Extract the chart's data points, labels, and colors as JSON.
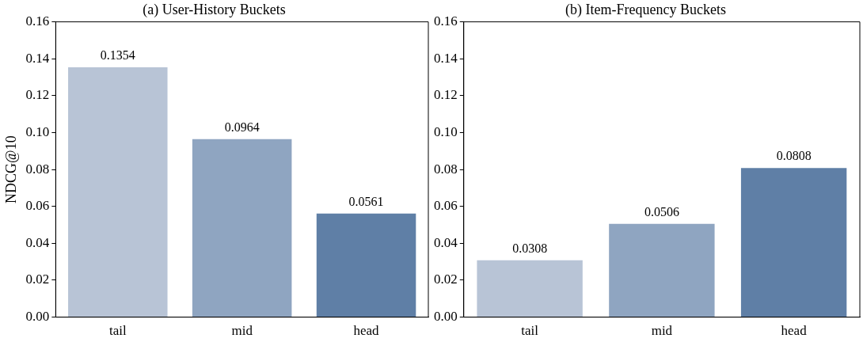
{
  "chart_data": [
    {
      "type": "bar",
      "title": "(a) User-History Buckets",
      "ylabel": "NDCG@10",
      "categories": [
        "tail",
        "mid",
        "head"
      ],
      "values": [
        0.1354,
        0.0964,
        0.0561
      ],
      "colors": [
        "#b8c4d6",
        "#8fa5c1",
        "#5f7fa6"
      ],
      "ylim": [
        0,
        0.16
      ],
      "yticks": [
        {
          "value": 0,
          "label": "0.00"
        },
        {
          "value": 0.02,
          "label": "0.02"
        },
        {
          "value": 0.04,
          "label": "0.04"
        },
        {
          "value": 0.06,
          "label": "0.06"
        },
        {
          "value": 0.08,
          "label": "0.08"
        },
        {
          "value": 0.1,
          "label": "0.10"
        },
        {
          "value": 0.12,
          "label": "0.12"
        },
        {
          "value": 0.14,
          "label": "0.14"
        },
        {
          "value": 0.16,
          "label": "0.16"
        }
      ],
      "data_labels": true,
      "grid": false,
      "legend": false
    },
    {
      "type": "bar",
      "title": "(b) Item-Frequency Buckets",
      "categories": [
        "tail",
        "mid",
        "head"
      ],
      "values": [
        0.0308,
        0.0506,
        0.0808
      ],
      "colors": [
        "#b8c4d6",
        "#8fa5c1",
        "#5f7fa6"
      ],
      "ylim": [
        0,
        0.16
      ],
      "yticks": [
        {
          "value": 0,
          "label": "0.00"
        },
        {
          "value": 0.02,
          "label": "0.02"
        },
        {
          "value": 0.04,
          "label": "0.04"
        },
        {
          "value": 0.06,
          "label": "0.06"
        },
        {
          "value": 0.08,
          "label": "0.08"
        },
        {
          "value": 0.1,
          "label": "0.10"
        },
        {
          "value": 0.12,
          "label": "0.12"
        },
        {
          "value": 0.14,
          "label": "0.14"
        },
        {
          "value": 0.16,
          "label": "0.16"
        }
      ],
      "data_labels": true,
      "grid": false,
      "legend": false
    }
  ]
}
